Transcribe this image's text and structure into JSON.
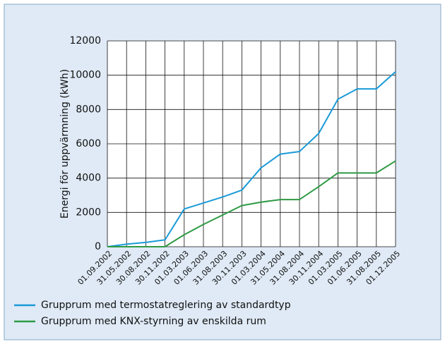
{
  "chart_data": {
    "type": "line",
    "y_label": "Energi för uppvärmning (kWh)",
    "categories": [
      "01.09.2002",
      "31.05.2002",
      "30.08.2002",
      "30.11.2002",
      "01.03.2003",
      "01.06.2003",
      "31.08.2003",
      "30.11.2003",
      "01.03.2004",
      "31.05.2004",
      "31.08.2004",
      "30.11.2004",
      "01.03.2005",
      "01.06.2005",
      "31.08.2005",
      "01.12.2005"
    ],
    "series": [
      {
        "name": "Grupprum med termostatreglering av standardtyp",
        "color": "#1a9ad7",
        "values": [
          0,
          150,
          250,
          400,
          2200,
          2550,
          2900,
          3300,
          4600,
          5400,
          5550,
          6600,
          8600,
          9200,
          9200,
          10200
        ]
      },
      {
        "name": "Grupprum med KNX-styrning av enskilda rum",
        "color": "#2e9a44",
        "values": [
          0,
          0,
          0,
          0,
          700,
          1300,
          1850,
          2400,
          2600,
          2750,
          2750,
          3500,
          4300,
          4300,
          4300,
          5000
        ]
      }
    ],
    "ylim": [
      0,
      12000
    ],
    "yticks": [
      0,
      2000,
      4000,
      6000,
      8000,
      10000,
      12000
    ],
    "grid": true
  }
}
